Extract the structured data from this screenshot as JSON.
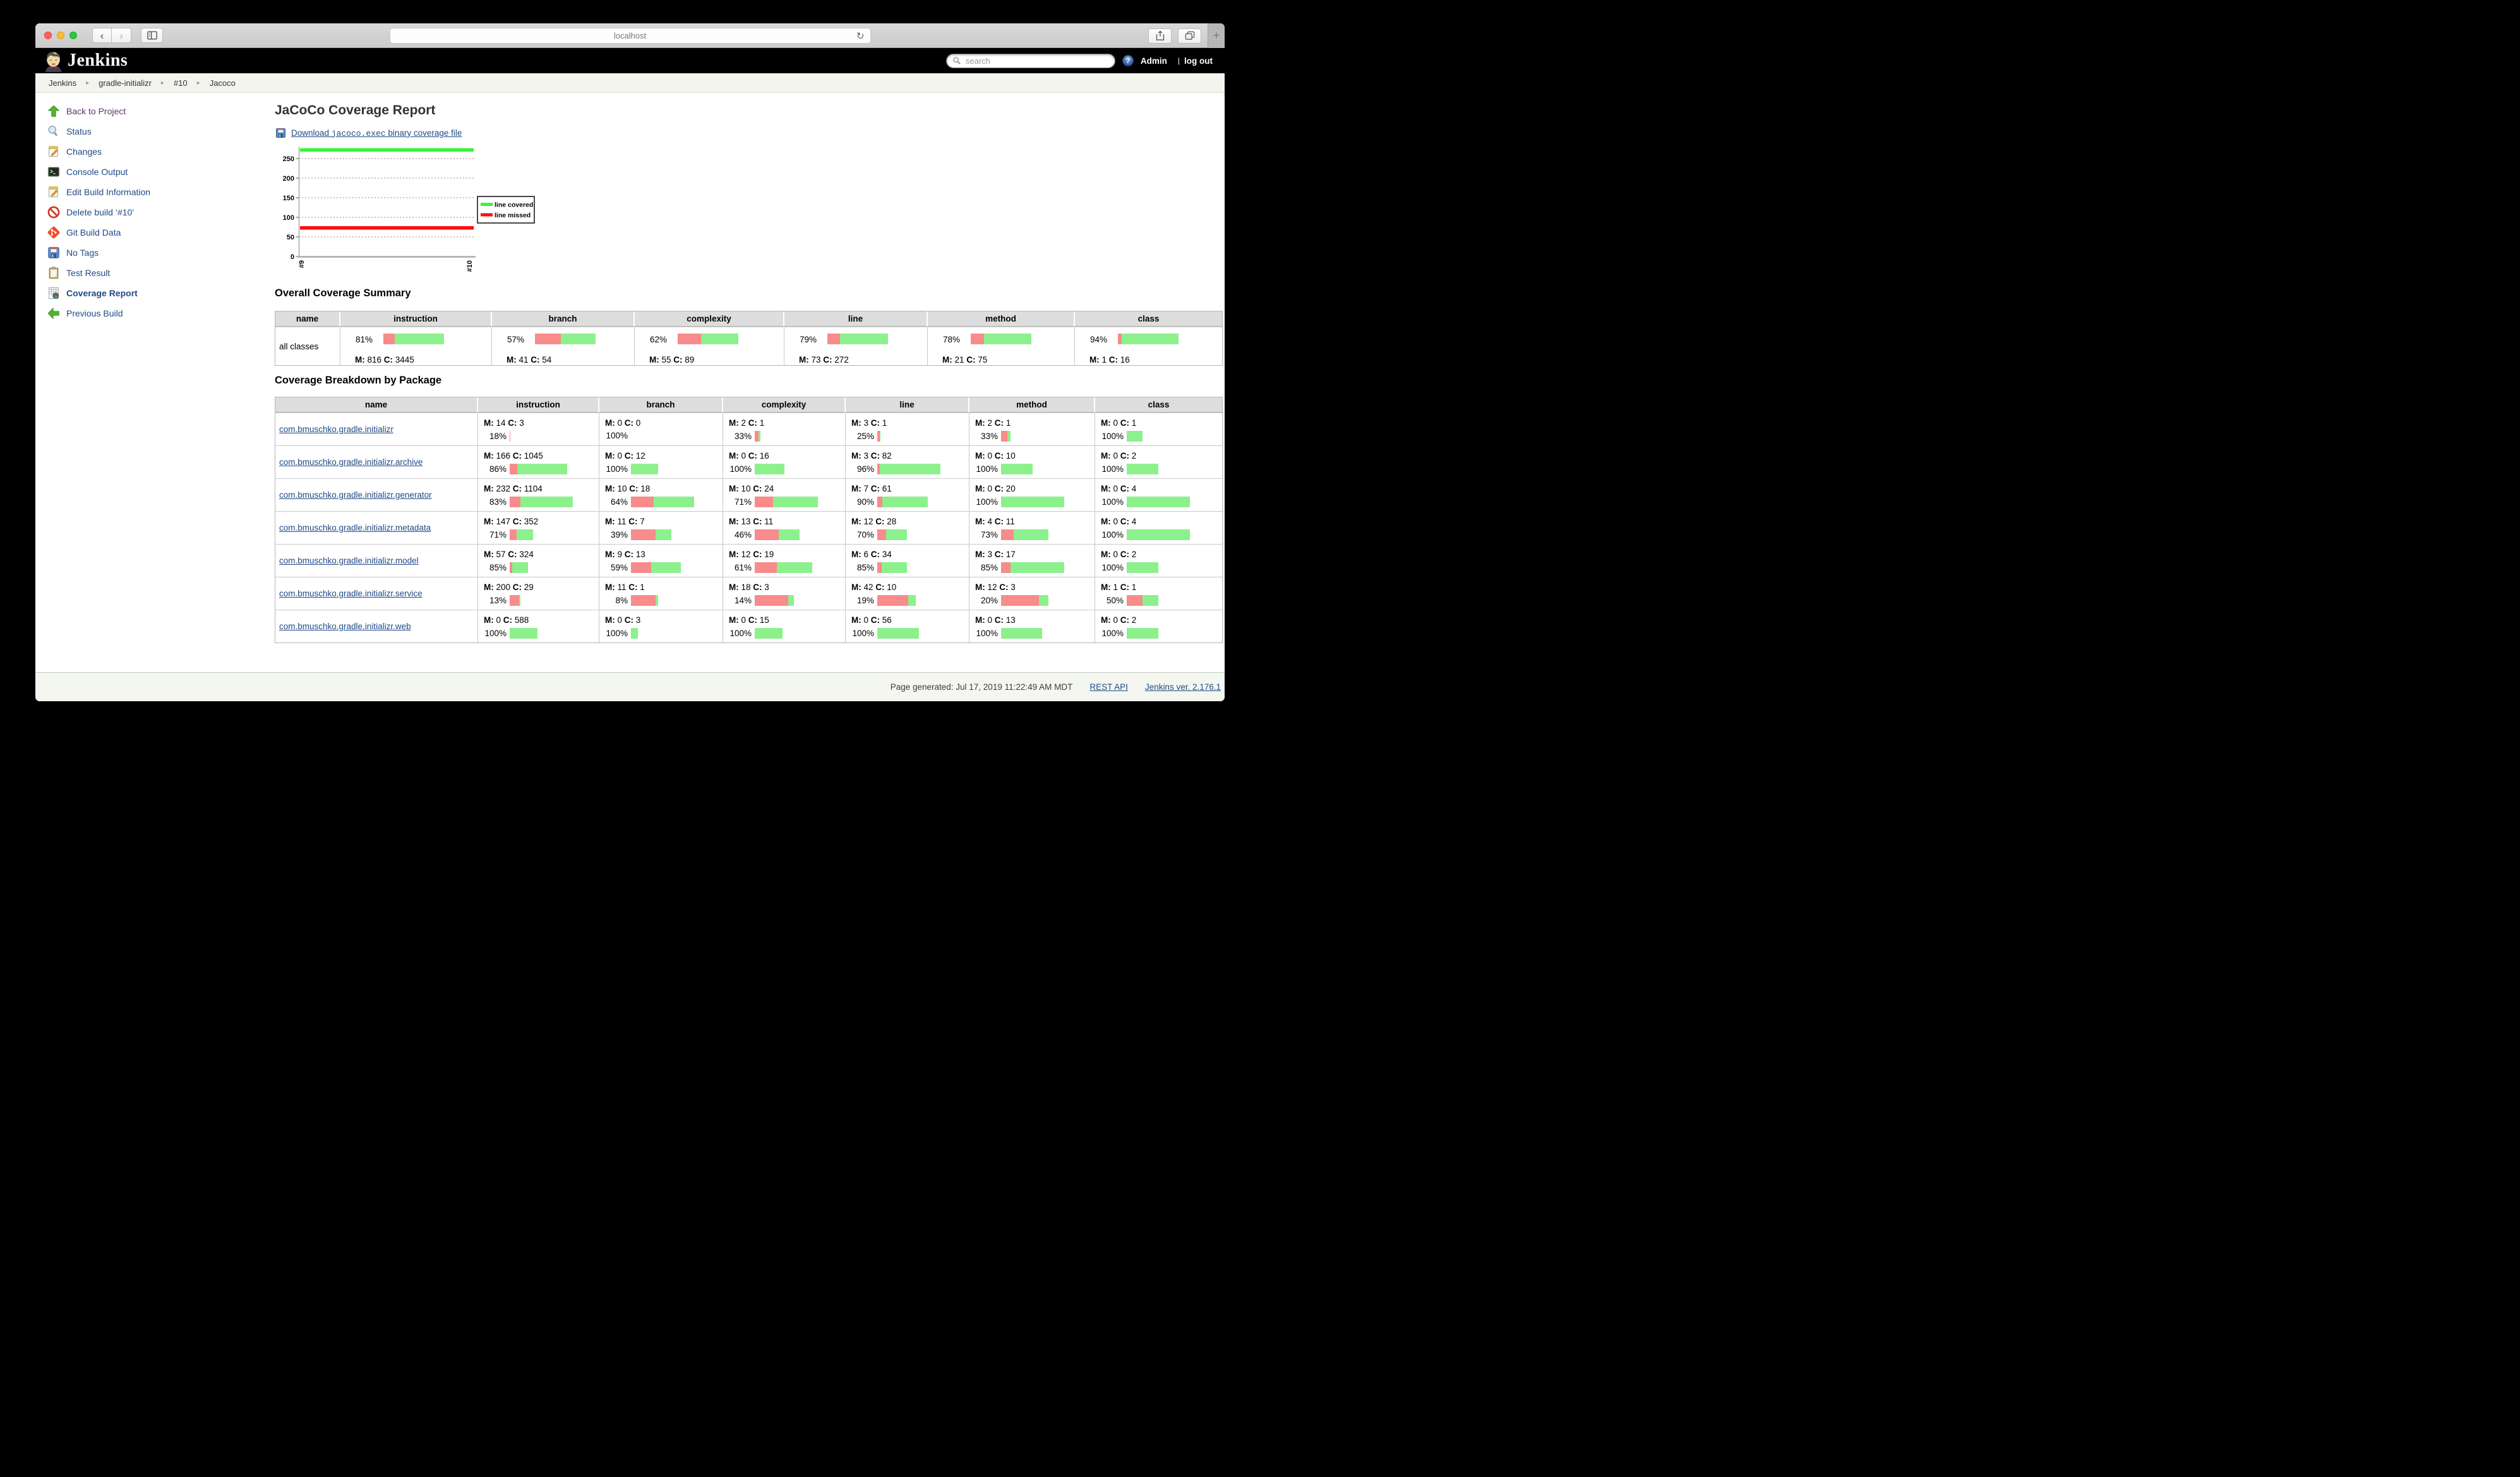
{
  "window": {
    "url": "localhost"
  },
  "jenkins_header": {
    "brand": "Jenkins",
    "search_placeholder": "search",
    "help_label": "?",
    "user": "Admin",
    "divider": "|",
    "logout": "log out"
  },
  "breadcrumb": {
    "items": [
      "Jenkins",
      "gradle-initializr",
      "#10",
      "Jacoco"
    ]
  },
  "sidebar": {
    "items": [
      {
        "icon": "up",
        "label": "Back to Project",
        "visited": true
      },
      {
        "icon": "search",
        "label": "Status"
      },
      {
        "icon": "note",
        "label": "Changes"
      },
      {
        "icon": "term",
        "label": "Console Output"
      },
      {
        "icon": "note",
        "label": "Edit Build Information"
      },
      {
        "icon": "ban",
        "label": "Delete build ‘#10’"
      },
      {
        "icon": "git",
        "label": "Git Build Data"
      },
      {
        "icon": "floppy",
        "label": "No Tags"
      },
      {
        "icon": "clip",
        "label": "Test Result"
      },
      {
        "icon": "cov",
        "label": "Coverage Report",
        "active": true
      },
      {
        "icon": "left",
        "label": "Previous Build"
      }
    ]
  },
  "main": {
    "title": "JaCoCo Coverage Report",
    "download_link": {
      "prefix": "Download ",
      "file": "jacoco.exec",
      "suffix": " binary coverage file"
    },
    "chart_data": {
      "type": "line",
      "x": [
        "#9",
        "#10"
      ],
      "series": [
        {
          "name": "line covered",
          "color": "#35f735",
          "values": [
            272,
            272
          ]
        },
        {
          "name": "line missed",
          "color": "#ff0d0d",
          "values": [
            73,
            73
          ]
        }
      ],
      "ylim": [
        0,
        283
      ],
      "yticks": [
        0,
        50,
        100,
        150,
        200,
        250
      ],
      "grid": "dotted-horizontal",
      "legend_position": "right",
      "xlabel": "",
      "ylabel": "",
      "title": ""
    },
    "labels": {
      "missed": "M:",
      "covered": "C:"
    },
    "summary": {
      "heading": "Overall Coverage Summary",
      "columns": [
        "name",
        "instruction",
        "branch",
        "complexity",
        "line",
        "method",
        "class"
      ],
      "rows": [
        {
          "name": "all classes",
          "metrics": {
            "instruction": {
              "pct": "81%",
              "missed": 816,
              "covered": 3445
            },
            "branch": {
              "pct": "57%",
              "missed": 41,
              "covered": 54
            },
            "complexity": {
              "pct": "62%",
              "missed": 55,
              "covered": 89
            },
            "line": {
              "pct": "79%",
              "missed": 73,
              "covered": 272
            },
            "method": {
              "pct": "78%",
              "missed": 21,
              "covered": 75
            },
            "class": {
              "pct": "94%",
              "missed": 1,
              "covered": 16
            }
          }
        }
      ]
    },
    "breakdown": {
      "heading": "Coverage Breakdown by Package",
      "columns": [
        "name",
        "instruction",
        "branch",
        "complexity",
        "line",
        "method",
        "class"
      ],
      "rows": [
        {
          "name": "com.bmuschko.gradle.initializr",
          "metrics": {
            "instruction": {
              "pct": "18%",
              "missed": 14,
              "covered": 3
            },
            "branch": {
              "pct": "100%",
              "missed": 0,
              "covered": 0
            },
            "complexity": {
              "pct": "33%",
              "missed": 2,
              "covered": 1
            },
            "line": {
              "pct": "25%",
              "missed": 3,
              "covered": 1
            },
            "method": {
              "pct": "33%",
              "missed": 2,
              "covered": 1
            },
            "class": {
              "pct": "100%",
              "missed": 0,
              "covered": 1
            }
          }
        },
        {
          "name": "com.bmuschko.gradle.initializr.archive",
          "metrics": {
            "instruction": {
              "pct": "86%",
              "missed": 166,
              "covered": 1045
            },
            "branch": {
              "pct": "100%",
              "missed": 0,
              "covered": 12
            },
            "complexity": {
              "pct": "100%",
              "missed": 0,
              "covered": 16
            },
            "line": {
              "pct": "96%",
              "missed": 3,
              "covered": 82
            },
            "method": {
              "pct": "100%",
              "missed": 0,
              "covered": 10
            },
            "class": {
              "pct": "100%",
              "missed": 0,
              "covered": 2
            }
          }
        },
        {
          "name": "com.bmuschko.gradle.initializr.generator",
          "metrics": {
            "instruction": {
              "pct": "83%",
              "missed": 232,
              "covered": 1104
            },
            "branch": {
              "pct": "64%",
              "missed": 10,
              "covered": 18
            },
            "complexity": {
              "pct": "71%",
              "missed": 10,
              "covered": 24
            },
            "line": {
              "pct": "90%",
              "missed": 7,
              "covered": 61
            },
            "method": {
              "pct": "100%",
              "missed": 0,
              "covered": 20
            },
            "class": {
              "pct": "100%",
              "missed": 0,
              "covered": 4
            }
          }
        },
        {
          "name": "com.bmuschko.gradle.initializr.metadata",
          "metrics": {
            "instruction": {
              "pct": "71%",
              "missed": 147,
              "covered": 352
            },
            "branch": {
              "pct": "39%",
              "missed": 11,
              "covered": 7
            },
            "complexity": {
              "pct": "46%",
              "missed": 13,
              "covered": 11
            },
            "line": {
              "pct": "70%",
              "missed": 12,
              "covered": 28
            },
            "method": {
              "pct": "73%",
              "missed": 4,
              "covered": 11
            },
            "class": {
              "pct": "100%",
              "missed": 0,
              "covered": 4
            }
          }
        },
        {
          "name": "com.bmuschko.gradle.initializr.model",
          "metrics": {
            "instruction": {
              "pct": "85%",
              "missed": 57,
              "covered": 324
            },
            "branch": {
              "pct": "59%",
              "missed": 9,
              "covered": 13
            },
            "complexity": {
              "pct": "61%",
              "missed": 12,
              "covered": 19
            },
            "line": {
              "pct": "85%",
              "missed": 6,
              "covered": 34
            },
            "method": {
              "pct": "85%",
              "missed": 3,
              "covered": 17
            },
            "class": {
              "pct": "100%",
              "missed": 0,
              "covered": 2
            }
          }
        },
        {
          "name": "com.bmuschko.gradle.initializr.service",
          "metrics": {
            "instruction": {
              "pct": "13%",
              "missed": 200,
              "covered": 29
            },
            "branch": {
              "pct": "8%",
              "missed": 11,
              "covered": 1
            },
            "complexity": {
              "pct": "14%",
              "missed": 18,
              "covered": 3
            },
            "line": {
              "pct": "19%",
              "missed": 42,
              "covered": 10
            },
            "method": {
              "pct": "20%",
              "missed": 12,
              "covered": 3
            },
            "class": {
              "pct": "50%",
              "missed": 1,
              "covered": 1
            }
          }
        },
        {
          "name": "com.bmuschko.gradle.initializr.web",
          "metrics": {
            "instruction": {
              "pct": "100%",
              "missed": 0,
              "covered": 588
            },
            "branch": {
              "pct": "100%",
              "missed": 0,
              "covered": 3
            },
            "complexity": {
              "pct": "100%",
              "missed": 0,
              "covered": 15
            },
            "line": {
              "pct": "100%",
              "missed": 0,
              "covered": 56
            },
            "method": {
              "pct": "100%",
              "missed": 0,
              "covered": 13
            },
            "class": {
              "pct": "100%",
              "missed": 0,
              "covered": 2
            }
          }
        }
      ]
    }
  },
  "footer": {
    "generated": "Page generated: Jul 17, 2019 11:22:49 AM MDT",
    "links": [
      "REST API",
      "Jenkins ver. 2.176.1"
    ]
  },
  "colors": {
    "bar_missed": "#f88b8b",
    "bar_covered": "#8cf18c",
    "chart_covered": "#35f735",
    "chart_missed": "#ff0d0d",
    "link": "#204a87",
    "header_bg": "#000000",
    "table_header_bg": "#dddddd"
  }
}
